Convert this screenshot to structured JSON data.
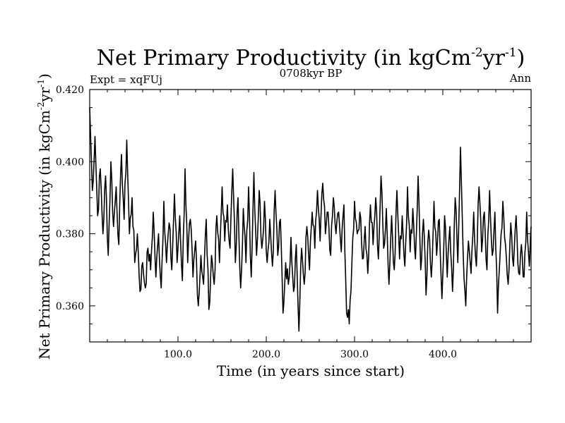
{
  "chart_data": {
    "type": "line",
    "title": "Net Primary Productivity (in kgCm",
    "title_sup1": "-2",
    "title_mid": "yr",
    "title_sup2": "-1",
    "title_end": ")",
    "subtitle": "0708kyr BP",
    "left_label": "Expt = xqFUj",
    "right_label": "Ann",
    "xlabel": "Time (in years since start)",
    "ylabel": {
      "part1": "Net Primary Productivity (in kgCm",
      "sup1": "-2",
      "part2": "yr",
      "sup2": "-1",
      "part3": ")"
    },
    "xlim": [
      0,
      500
    ],
    "ylim": [
      0.35,
      0.42
    ],
    "x_ticks": [
      {
        "value": 100,
        "label": "100.0"
      },
      {
        "value": 200,
        "label": "200.0"
      },
      {
        "value": 300,
        "label": "300.0"
      },
      {
        "value": 400,
        "label": "400.0"
      }
    ],
    "y_ticks": [
      {
        "value": 0.36,
        "label": "0.360"
      },
      {
        "value": 0.38,
        "label": "0.380"
      },
      {
        "value": 0.4,
        "label": "0.400"
      },
      {
        "value": 0.42,
        "label": "0.420"
      }
    ],
    "anchors": [
      [
        0,
        0.415
      ],
      [
        3,
        0.392
      ],
      [
        6,
        0.407
      ],
      [
        9,
        0.385
      ],
      [
        12,
        0.398
      ],
      [
        15,
        0.38
      ],
      [
        18,
        0.396
      ],
      [
        21,
        0.374
      ],
      [
        24,
        0.4
      ],
      [
        27,
        0.382
      ],
      [
        30,
        0.393
      ],
      [
        33,
        0.377
      ],
      [
        36,
        0.402
      ],
      [
        39,
        0.384
      ],
      [
        42,
        0.406
      ],
      [
        45,
        0.38
      ],
      [
        48,
        0.39
      ],
      [
        51,
        0.372
      ],
      [
        54,
        0.38
      ],
      [
        57,
        0.364
      ],
      [
        60,
        0.372
      ],
      [
        63,
        0.365
      ],
      [
        66,
        0.376
      ],
      [
        69,
        0.37
      ],
      [
        72,
        0.386
      ],
      [
        75,
        0.368
      ],
      [
        78,
        0.38
      ],
      [
        81,
        0.365
      ],
      [
        84,
        0.389
      ],
      [
        87,
        0.372
      ],
      [
        90,
        0.383
      ],
      [
        93,
        0.37
      ],
      [
        96,
        0.391
      ],
      [
        99,
        0.372
      ],
      [
        102,
        0.385
      ],
      [
        105,
        0.367
      ],
      [
        108,
        0.398
      ],
      [
        111,
        0.372
      ],
      [
        114,
        0.384
      ],
      [
        117,
        0.368
      ],
      [
        120,
        0.378
      ],
      [
        123,
        0.36
      ],
      [
        126,
        0.374
      ],
      [
        129,
        0.366
      ],
      [
        132,
        0.384
      ],
      [
        135,
        0.359
      ],
      [
        138,
        0.374
      ],
      [
        141,
        0.366
      ],
      [
        144,
        0.385
      ],
      [
        147,
        0.372
      ],
      [
        150,
        0.393
      ],
      [
        153,
        0.378
      ],
      [
        156,
        0.388
      ],
      [
        159,
        0.376
      ],
      [
        162,
        0.398
      ],
      [
        165,
        0.372
      ],
      [
        168,
        0.39
      ],
      [
        171,
        0.365
      ],
      [
        174,
        0.387
      ],
      [
        177,
        0.372
      ],
      [
        180,
        0.393
      ],
      [
        183,
        0.368
      ],
      [
        186,
        0.397
      ],
      [
        189,
        0.374
      ],
      [
        192,
        0.392
      ],
      [
        195,
        0.376
      ],
      [
        198,
        0.389
      ],
      [
        201,
        0.372
      ],
      [
        204,
        0.384
      ],
      [
        207,
        0.371
      ],
      [
        210,
        0.392
      ],
      [
        213,
        0.374
      ],
      [
        216,
        0.384
      ],
      [
        219,
        0.358
      ],
      [
        222,
        0.372
      ],
      [
        225,
        0.366
      ],
      [
        228,
        0.379
      ],
      [
        231,
        0.364
      ],
      [
        234,
        0.377
      ],
      [
        237,
        0.353
      ],
      [
        240,
        0.376
      ],
      [
        243,
        0.366
      ],
      [
        246,
        0.382
      ],
      [
        249,
        0.37
      ],
      [
        252,
        0.386
      ],
      [
        255,
        0.376
      ],
      [
        258,
        0.392
      ],
      [
        261,
        0.378
      ],
      [
        264,
        0.394
      ],
      [
        267,
        0.38
      ],
      [
        270,
        0.386
      ],
      [
        273,
        0.374
      ],
      [
        276,
        0.39
      ],
      [
        279,
        0.38
      ],
      [
        282,
        0.386
      ],
      [
        285,
        0.375
      ],
      [
        288,
        0.388
      ],
      [
        291,
        0.358
      ],
      [
        294,
        0.355
      ],
      [
        297,
        0.372
      ],
      [
        300,
        0.389
      ],
      [
        303,
        0.38
      ],
      [
        306,
        0.386
      ],
      [
        309,
        0.373
      ],
      [
        312,
        0.382
      ],
      [
        315,
        0.369
      ],
      [
        318,
        0.388
      ],
      [
        321,
        0.377
      ],
      [
        324,
        0.39
      ],
      [
        327,
        0.373
      ],
      [
        330,
        0.396
      ],
      [
        333,
        0.376
      ],
      [
        336,
        0.387
      ],
      [
        339,
        0.366
      ],
      [
        342,
        0.385
      ],
      [
        345,
        0.37
      ],
      [
        348,
        0.392
      ],
      [
        351,
        0.373
      ],
      [
        354,
        0.385
      ],
      [
        357,
        0.371
      ],
      [
        360,
        0.393
      ],
      [
        363,
        0.375
      ],
      [
        366,
        0.387
      ],
      [
        369,
        0.373
      ],
      [
        372,
        0.396
      ],
      [
        375,
        0.37
      ],
      [
        378,
        0.384
      ],
      [
        381,
        0.363
      ],
      [
        384,
        0.381
      ],
      [
        387,
        0.368
      ],
      [
        390,
        0.389
      ],
      [
        393,
        0.374
      ],
      [
        396,
        0.384
      ],
      [
        399,
        0.362
      ],
      [
        402,
        0.385
      ],
      [
        405,
        0.368
      ],
      [
        408,
        0.382
      ],
      [
        411,
        0.364
      ],
      [
        414,
        0.39
      ],
      [
        417,
        0.372
      ],
      [
        420,
        0.404
      ],
      [
        423,
        0.375
      ],
      [
        426,
        0.36
      ],
      [
        429,
        0.378
      ],
      [
        432,
        0.369
      ],
      [
        435,
        0.386
      ],
      [
        438,
        0.371
      ],
      [
        441,
        0.393
      ],
      [
        444,
        0.375
      ],
      [
        447,
        0.386
      ],
      [
        450,
        0.37
      ],
      [
        453,
        0.392
      ],
      [
        456,
        0.374
      ],
      [
        459,
        0.386
      ],
      [
        462,
        0.358
      ],
      [
        465,
        0.375
      ],
      [
        468,
        0.389
      ],
      [
        471,
        0.377
      ],
      [
        474,
        0.366
      ],
      [
        477,
        0.383
      ],
      [
        480,
        0.371
      ],
      [
        483,
        0.385
      ],
      [
        486,
        0.369
      ],
      [
        489,
        0.377
      ],
      [
        492,
        0.368
      ],
      [
        495,
        0.386
      ],
      [
        498,
        0.371
      ],
      [
        500,
        0.382
      ]
    ]
  }
}
